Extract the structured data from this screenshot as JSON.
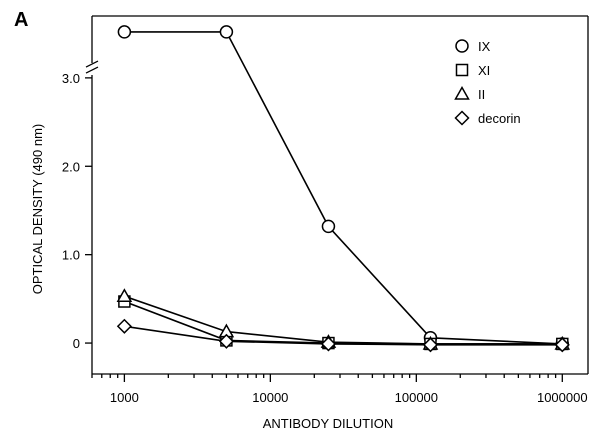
{
  "panel_label": "A",
  "chart_data": {
    "type": "line",
    "xlabel": "ANTIBODY DILUTION",
    "ylabel": "OPTICAL DENSITY (490 nm)",
    "xscale": "log",
    "xlim": [
      600,
      1500000
    ],
    "ylim": [
      -0.35,
      3.7
    ],
    "axis_break_y": 3.1,
    "x_ticks": [
      1000,
      10000,
      100000,
      1000000
    ],
    "x_tick_labels": [
      "1000",
      "10000",
      "100000",
      "1000000"
    ],
    "y_ticks": [
      0,
      1.0,
      2.0,
      3.0
    ],
    "y_tick_labels": [
      "0",
      "1.0",
      "2.0",
      "3.0"
    ],
    "legend_position": "top-right",
    "series": [
      {
        "name": "IX",
        "marker": "circle",
        "x": [
          1000,
          5000,
          25000,
          125000,
          1000000
        ],
        "y": [
          3.52,
          3.52,
          1.32,
          0.06,
          -0.01
        ]
      },
      {
        "name": "XI",
        "marker": "square",
        "x": [
          1000,
          5000,
          25000,
          125000,
          1000000
        ],
        "y": [
          0.47,
          0.03,
          0.0,
          -0.01,
          -0.01
        ]
      },
      {
        "name": "II",
        "marker": "triangle",
        "x": [
          1000,
          5000,
          25000,
          125000,
          1000000
        ],
        "y": [
          0.53,
          0.13,
          0.01,
          -0.01,
          -0.01
        ]
      },
      {
        "name": "decorin",
        "marker": "diamond",
        "x": [
          1000,
          5000,
          25000,
          125000,
          1000000
        ],
        "y": [
          0.19,
          0.02,
          -0.01,
          -0.02,
          -0.02
        ]
      }
    ]
  }
}
